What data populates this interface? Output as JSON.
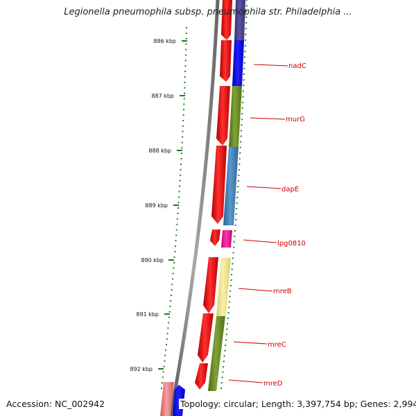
{
  "title": "Legionella pneumophila subsp. pneumophila str. Philadelphia ...",
  "footer": {
    "accession": "Accession: NC_002942",
    "topology": "Topology: circular; Length: 3,397,754 bp; Genes: 2,994"
  },
  "ruler": {
    "labels": [
      "886 kbp",
      "887 kbp",
      "888 kbp",
      "889 kbp",
      "890 kbp",
      "891 kbp",
      "892 kbp"
    ],
    "tick_color": "#1a7a1a"
  },
  "genes": [
    {
      "name": "nadC",
      "color": "#0000ff"
    },
    {
      "name": "murG",
      "color": "#6b8e23"
    },
    {
      "name": "dapE",
      "color": "#4682b4"
    },
    {
      "name": "lpg0810",
      "color": "#ff1493"
    },
    {
      "name": "mreB",
      "color": "#f0e68c"
    },
    {
      "name": "mreC",
      "color": "#6b8e23"
    },
    {
      "name": "mreD",
      "color": "#6b8e23"
    }
  ],
  "colors": {
    "cds": "#ff0000",
    "backbone": "#808080",
    "label": "#cc0000",
    "top_segment": "#483d8b"
  }
}
